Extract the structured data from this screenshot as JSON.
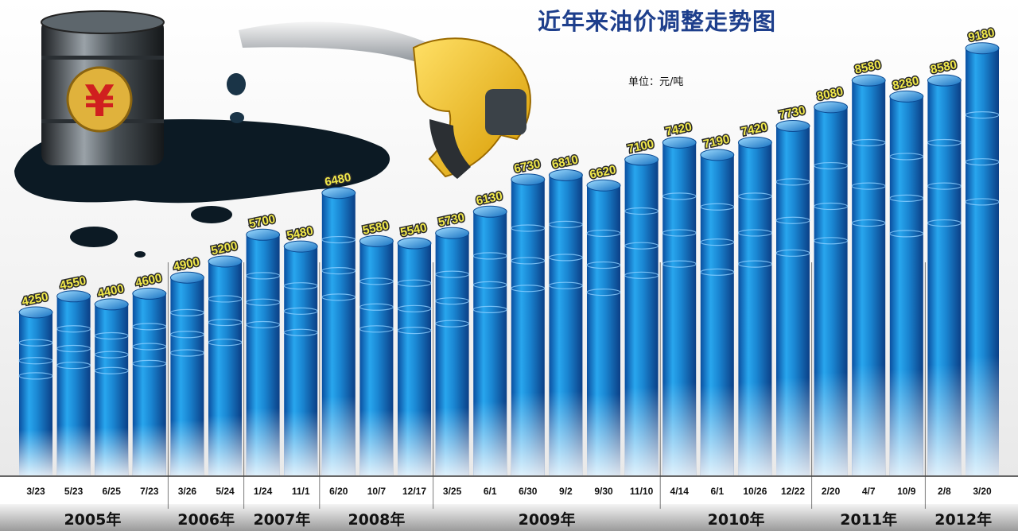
{
  "title": "近年来油价调整走势图",
  "unit": "单位：元/吨",
  "chart_data": {
    "type": "bar",
    "title": "近年来油价调整走势图",
    "unit": "元/吨",
    "categories": [
      "3/23",
      "5/23",
      "6/25",
      "7/23",
      "3/26",
      "5/24",
      "1/24",
      "11/1",
      "6/20",
      "10/7",
      "12/17",
      "3/25",
      "6/1",
      "6/30",
      "9/2",
      "9/30",
      "11/10",
      "4/14",
      "6/1",
      "10/26",
      "12/22",
      "2/20",
      "4/7",
      "10/9",
      "2/8",
      "3/20"
    ],
    "values": [
      4250,
      4550,
      4400,
      4600,
      4900,
      5200,
      5700,
      5480,
      6480,
      5580,
      5540,
      5730,
      6130,
      6730,
      6810,
      6620,
      7100,
      7420,
      7190,
      7420,
      7730,
      8080,
      8580,
      8280,
      8580,
      9180
    ],
    "years": [
      {
        "label": "2005年",
        "start": 0,
        "end": 3
      },
      {
        "label": "2006年",
        "start": 4,
        "end": 5
      },
      {
        "label": "2007年",
        "start": 6,
        "end": 7
      },
      {
        "label": "2008年",
        "start": 8,
        "end": 10
      },
      {
        "label": "2009年",
        "start": 11,
        "end": 16
      },
      {
        "label": "2010年",
        "start": 17,
        "end": 20
      },
      {
        "label": "2011年",
        "start": 21,
        "end": 23
      },
      {
        "label": "2012年",
        "start": 24,
        "end": 25
      }
    ],
    "bar_color": "#1b8fd6",
    "label_color": "#f2e94a"
  }
}
